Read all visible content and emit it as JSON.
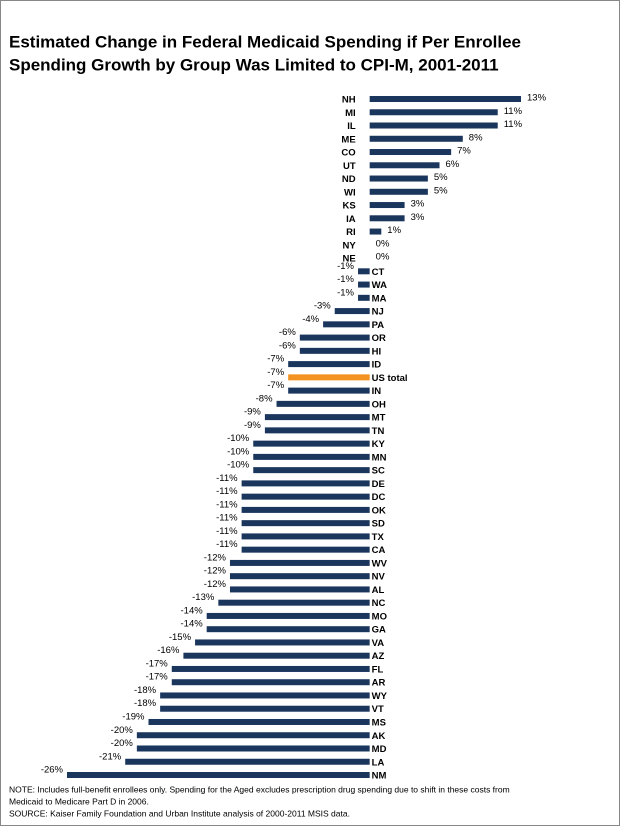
{
  "chart_data": {
    "type": "hbar",
    "title": [
      "Estimated Change in Federal Medicaid Spending if Per Enrollee",
      "Spending Growth by Group Was Limited to CPI-M, 2001-2011"
    ],
    "categories": [
      "NH",
      "MI",
      "IL",
      "ME",
      "CO",
      "UT",
      "ND",
      "WI",
      "KS",
      "IA",
      "RI",
      "NY",
      "NE",
      "CT",
      "WA",
      "MA",
      "NJ",
      "PA",
      "OR",
      "HI",
      "ID",
      "US total",
      "IN",
      "OH",
      "MT",
      "TN",
      "KY",
      "MN",
      "SC",
      "DE",
      "DC",
      "OK",
      "SD",
      "TX",
      "CA",
      "WV",
      "NV",
      "AL",
      "NC",
      "MO",
      "GA",
      "VA",
      "AZ",
      "FL",
      "AR",
      "WY",
      "VT",
      "MS",
      "AK",
      "MD",
      "LA",
      "NM"
    ],
    "values": [
      13,
      11,
      11,
      8,
      7,
      6,
      5,
      5,
      3,
      3,
      1,
      0,
      0,
      -1,
      -1,
      -1,
      -3,
      -4,
      -6,
      -6,
      -7,
      -7,
      -7,
      -8,
      -9,
      -9,
      -10,
      -10,
      -10,
      -11,
      -11,
      -11,
      -11,
      -11,
      -11,
      -12,
      -12,
      -12,
      -13,
      -14,
      -14,
      -15,
      -16,
      -17,
      -17,
      -18,
      -18,
      -19,
      -20,
      -20,
      -21,
      -26
    ],
    "value_labels": [
      "13%",
      "11%",
      "11%",
      "8%",
      "7%",
      "6%",
      "5%",
      "5%",
      "3%",
      "3%",
      "1%",
      "0%",
      "0%",
      "-1%",
      "-1%",
      "-1%",
      "-3%",
      "-4%",
      "-6%",
      "-6%",
      "-7%",
      "-7%",
      "-7%",
      "-8%",
      "-9%",
      "-9%",
      "-10%",
      "-10%",
      "-10%",
      "-11%",
      "-11%",
      "-11%",
      "-11%",
      "-11%",
      "-11%",
      "-12%",
      "-12%",
      "-12%",
      "-13%",
      "-14%",
      "-14%",
      "-15%",
      "-16%",
      "-17%",
      "-17%",
      "-18%",
      "-18%",
      "-19%",
      "-20%",
      "-20%",
      "-21%",
      "-26%"
    ],
    "color": "#1b365d",
    "highlight": {
      "category": "US total",
      "color": "#f39220"
    },
    "notes": [
      "NOTE: Includes full-benefit enrollees only.  Spending for the Aged excludes prescription drug spending due to shift in these costs from",
      "Medicaid to Medicare Part D in 2006.",
      "SOURCE: Kaiser Family Foundation and Urban Institute analysis of 2000-2011 MSIS data."
    ]
  }
}
